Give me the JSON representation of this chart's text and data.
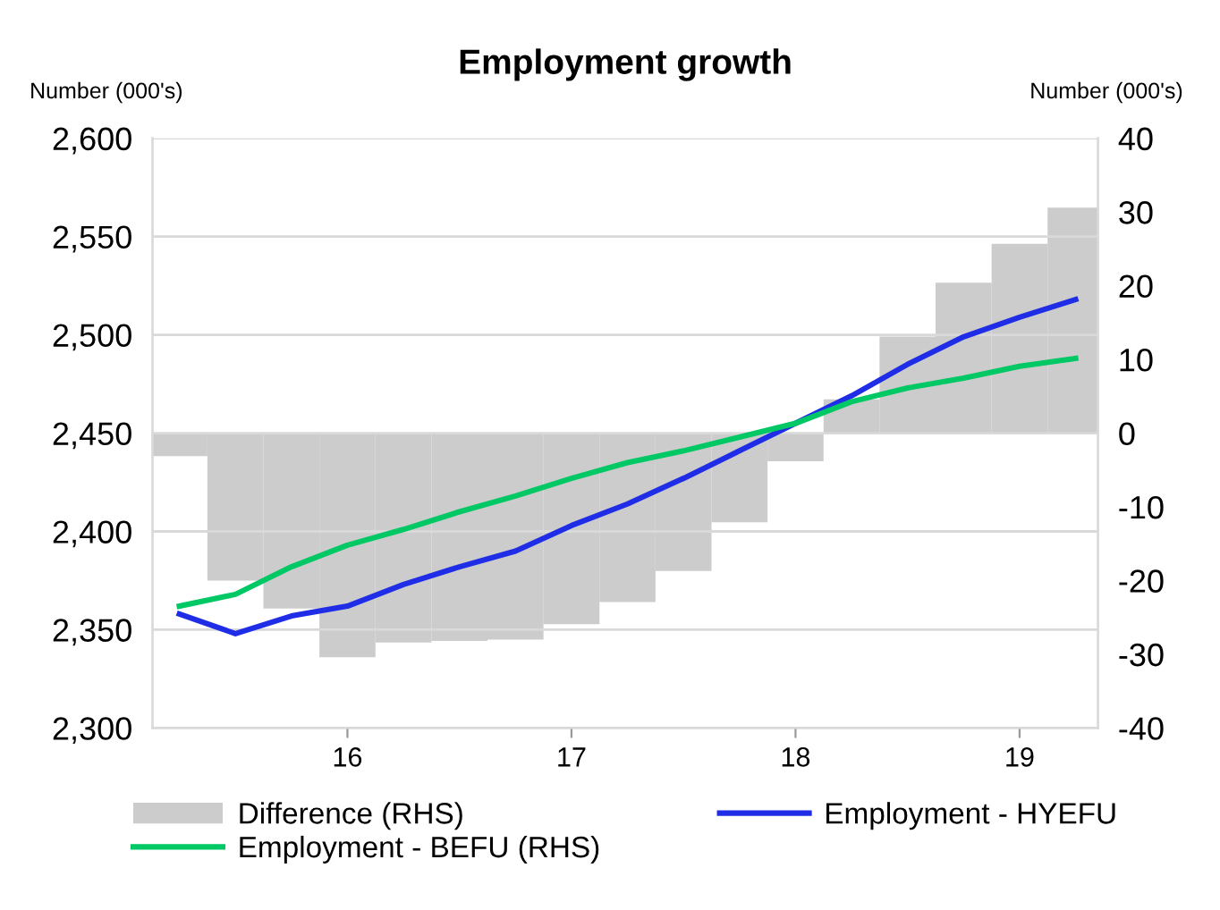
{
  "chart_data": {
    "type": "line",
    "title": "Employment growth",
    "ylabel": "Number (000's)",
    "y2label": "Number (000's)",
    "x": [
      15.25,
      15.5,
      15.75,
      16.0,
      16.25,
      16.5,
      16.75,
      17.0,
      17.25,
      17.5,
      17.75,
      18.0,
      18.25,
      18.5,
      18.75,
      19.0,
      19.25
    ],
    "xlim": [
      15.13,
      19.35
    ],
    "xticks": [
      16,
      17,
      18,
      19
    ],
    "ylim": [
      2300,
      2600
    ],
    "yticks": [
      {
        "value": 2300,
        "label": "2,300"
      },
      {
        "value": 2350,
        "label": "2,350"
      },
      {
        "value": 2400,
        "label": "2,400"
      },
      {
        "value": 2450,
        "label": "2,450"
      },
      {
        "value": 2500,
        "label": "2,500"
      },
      {
        "value": 2550,
        "label": "2,550"
      },
      {
        "value": 2600,
        "label": "2,600"
      }
    ],
    "y2lim": [
      -40,
      40
    ],
    "y2ticks": [
      -40,
      -30,
      -20,
      -10,
      0,
      10,
      20,
      30,
      40
    ],
    "grid": "y",
    "legend": "bottom",
    "marker": "none",
    "line_style": "solid",
    "series": [
      {
        "name": "Difference (RHS)",
        "type": "bar",
        "axis": "y2",
        "color": "#cccccc",
        "values": [
          -3.1,
          -20.0,
          -23.8,
          -30.4,
          -28.4,
          -28.2,
          -28.0,
          -25.9,
          -22.9,
          -18.7,
          -12.1,
          -3.8,
          4.6,
          13.1,
          20.4,
          25.7,
          30.6
        ]
      },
      {
        "name": "Employment - HYEFU",
        "color": "#1f2ee6",
        "values": [
          2358,
          2348,
          2357,
          2362,
          2373,
          2382,
          2390,
          2403,
          2414,
          2427,
          2441,
          2455,
          2469,
          2485,
          2499,
          2509,
          2518
        ]
      },
      {
        "name": "Employment - BEFU (RHS)",
        "color": "#00c864",
        "values": [
          2362,
          2368,
          2382,
          2393,
          2401,
          2410,
          2418,
          2427,
          2435,
          2441,
          2448,
          2455,
          2466,
          2473,
          2478,
          2484,
          2488
        ]
      }
    ]
  }
}
